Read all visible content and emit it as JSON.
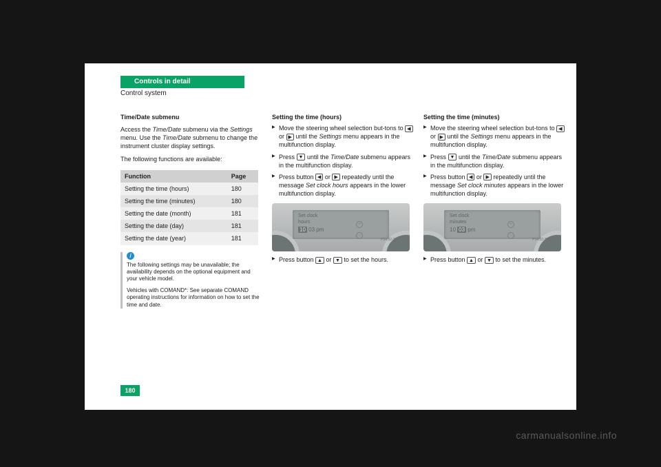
{
  "header": {
    "title": "Controls in detail"
  },
  "section_title": "Control system",
  "page_number": "180",
  "watermark": "carmanualsonline.info",
  "col1": {
    "heading": "Time/Date submenu",
    "intro": "Access the",
    "intro_italic": "Time/Date",
    "intro2": " submenu via the",
    "intro_italic2": "Settings",
    "intro3": " menu. Use the",
    "intro_italic3": "Time/Date",
    "intro4": " submenu to change the instrument cluster display settings.",
    "table_intro": "The following functions are available:",
    "table": {
      "headers": [
        "Function",
        "Page"
      ],
      "rows": [
        [
          "Setting the time (hours)",
          "180"
        ],
        [
          "Setting the time (minutes)",
          "180"
        ],
        [
          "Setting the date (month)",
          "181"
        ],
        [
          "Setting the date (day)",
          "181"
        ],
        [
          "Setting the date (year)",
          "181"
        ]
      ],
      "header_bg": "#d0d0d0",
      "row_bg_odd": "#e4e4e4",
      "row_bg_even": "#f0f0f0"
    },
    "info": {
      "icon_bg": "#1d8ed0",
      "lines": [
        "The following settings may be unavailable; the availability depends on the optional equipment and your vehicle model.",
        "Vehicles with COMAND*: See separate COMAND operating instructions for information on how to set the time and date."
      ]
    }
  },
  "col2": {
    "heading": "Setting the time (hours)",
    "steps": [
      {
        "pre": "Move the steering wheel selection but-tons to ",
        "btn": "◀",
        "mid": " or ",
        "btn2": "▶",
        "post": " until the ",
        "italic": "Settings",
        "post2": " menu appears in the multifunction display."
      },
      {
        "pre": "Press ",
        "btn": "▼",
        "post": " until the ",
        "italic": "Time/Date",
        "post2": " submenu appears in the multifunction display."
      },
      {
        "pre": "Press button ",
        "btn": "◀",
        "mid": " or ",
        "btn2": "▶",
        "post": " repeatedly until the message ",
        "italic": "Set clock hours",
        "post2": " appears in the lower multifunction display."
      }
    ],
    "display": {
      "line1": "Set clock",
      "line2": "hours",
      "value_hl": "10",
      "value_rest": " 03 pm",
      "pn": "P54.32-3984-31"
    },
    "after": {
      "pre": "Press button ",
      "btn": "▲",
      "mid": " or ",
      "btn2": "▼",
      "post": " to set the hours."
    }
  },
  "col3": {
    "heading": "Setting the time (minutes)",
    "steps": [
      {
        "pre": "Move the steering wheel selection but-tons to ",
        "btn": "◀",
        "mid": " or ",
        "btn2": "▶",
        "post": " until the ",
        "italic": "Settings",
        "post2": " menu appears in the multifunction display."
      },
      {
        "pre": "Press ",
        "btn": "▼",
        "post": " until the ",
        "italic": "Time/Date",
        "post2": " submenu appears in the multifunction display."
      },
      {
        "pre": "Press button ",
        "btn": "◀",
        "mid": " or ",
        "btn2": "▶",
        "post": " repeatedly until the message ",
        "italic": "Set clock minutes",
        "post2": " appears in the lower multifunction display."
      }
    ],
    "display": {
      "line1": "Set clock",
      "line2": "minutes",
      "value_pre": "10 ",
      "value_hl": "03",
      "value_rest": " pm",
      "pn": "P54.32-3985-31"
    },
    "after": {
      "pre": "Press button ",
      "btn": "▲",
      "mid": " or ",
      "btn2": "▼",
      "post": " to set the minutes."
    }
  },
  "colors": {
    "accent": "#0aa366",
    "page_bg": "#ffffff",
    "body_bg": "#151515"
  }
}
